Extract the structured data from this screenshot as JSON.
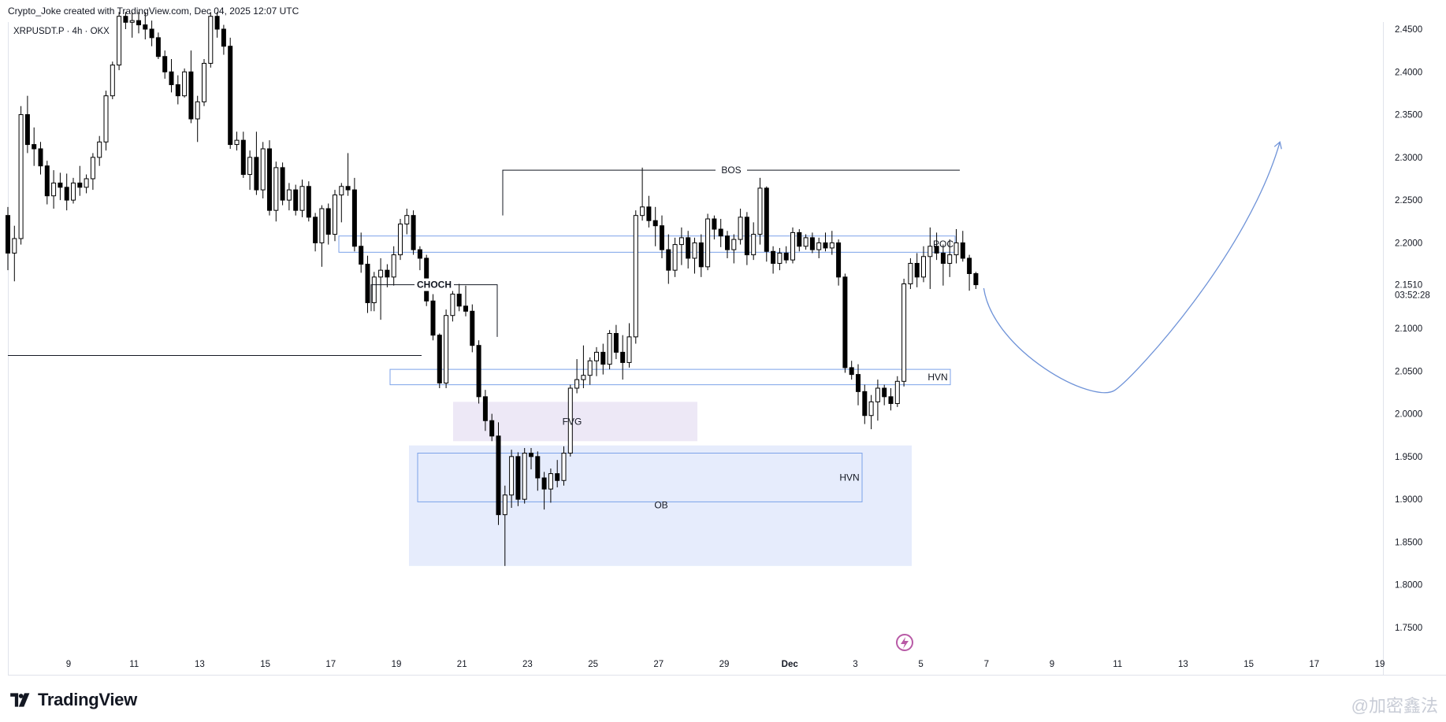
{
  "header": {
    "author_line": "Crypto_Joke created with TradingView.com, Dec 04, 2025 12:07 UTC",
    "symbol_line": "XRPUSDT.P · 4h · OKX"
  },
  "brand": {
    "name": "TradingView"
  },
  "watermark": {
    "text": "@加密鑫法"
  },
  "chart_data": {
    "type": "candlestick",
    "title": "",
    "x_ticks": [
      "9",
      "11",
      "13",
      "15",
      "17",
      "19",
      "21",
      "23",
      "25",
      "27",
      "29",
      "Dec",
      "3",
      "5",
      "7",
      "9",
      "11",
      "13",
      "15",
      "17",
      "19"
    ],
    "y_ticks": [
      "2.4500",
      "2.4000",
      "2.3500",
      "2.3000",
      "2.2500",
      "2.2000",
      "2.1510",
      "2.1000",
      "2.0500",
      "2.0000",
      "1.9500",
      "1.9000",
      "1.8500",
      "1.8000",
      "1.7500"
    ],
    "ylim": [
      1.72,
      2.47
    ],
    "last_price": "2.1510",
    "countdown": "03:52:28",
    "colors": {
      "up": "#ffffff",
      "down": "#000000",
      "wick": "#000000",
      "zone_stroke": "#7ba2e8",
      "fvg_fill": "#ede8f6",
      "ob_fill": "#e6ecfc",
      "arrow": "#6f93d8"
    },
    "annotations": [
      {
        "label": "BOS",
        "type": "level_line",
        "price": 2.285
      },
      {
        "label": "POC",
        "type": "zone",
        "price_top": 2.208,
        "price_bottom": 2.189
      },
      {
        "label": "CHOCH",
        "type": "level_line",
        "price": 2.151
      },
      {
        "label": "HVN",
        "type": "zone",
        "price_top": 2.052,
        "price_bottom": 2.034
      },
      {
        "label": "FVG",
        "type": "zone",
        "price_top": 2.014,
        "price_bottom": 1.968
      },
      {
        "label": "HVN",
        "type": "zone",
        "price_top": 1.954,
        "price_bottom": 1.897
      },
      {
        "label": "OB",
        "type": "zone",
        "price_top": 1.963,
        "price_bottom": 1.822
      }
    ],
    "projection": {
      "type": "curve_arrow",
      "points": [
        [
          0,
          2.147
        ],
        [
          8,
          2.028
        ],
        [
          18,
          2.318
        ]
      ]
    },
    "candles": [
      {
        "o": 2.232,
        "h": 2.242,
        "l": 2.168,
        "c": 2.188
      },
      {
        "o": 2.188,
        "h": 2.22,
        "l": 2.155,
        "c": 2.205
      },
      {
        "o": 2.205,
        "h": 2.36,
        "l": 2.198,
        "c": 2.35
      },
      {
        "o": 2.35,
        "h": 2.372,
        "l": 2.305,
        "c": 2.315
      },
      {
        "o": 2.315,
        "h": 2.335,
        "l": 2.29,
        "c": 2.31
      },
      {
        "o": 2.31,
        "h": 2.318,
        "l": 2.28,
        "c": 2.29
      },
      {
        "o": 2.29,
        "h": 2.296,
        "l": 2.245,
        "c": 2.255
      },
      {
        "o": 2.255,
        "h": 2.285,
        "l": 2.24,
        "c": 2.27
      },
      {
        "o": 2.27,
        "h": 2.282,
        "l": 2.25,
        "c": 2.265
      },
      {
        "o": 2.265,
        "h": 2.281,
        "l": 2.238,
        "c": 2.25
      },
      {
        "o": 2.25,
        "h": 2.276,
        "l": 2.246,
        "c": 2.27
      },
      {
        "o": 2.27,
        "h": 2.29,
        "l": 2.255,
        "c": 2.265
      },
      {
        "o": 2.265,
        "h": 2.28,
        "l": 2.258,
        "c": 2.275
      },
      {
        "o": 2.275,
        "h": 2.305,
        "l": 2.262,
        "c": 2.3
      },
      {
        "o": 2.3,
        "h": 2.325,
        "l": 2.29,
        "c": 2.318
      },
      {
        "o": 2.318,
        "h": 2.378,
        "l": 2.308,
        "c": 2.372
      },
      {
        "o": 2.372,
        "h": 2.412,
        "l": 2.368,
        "c": 2.408
      },
      {
        "o": 2.408,
        "h": 2.47,
        "l": 2.402,
        "c": 2.465
      },
      {
        "o": 2.465,
        "h": 2.47,
        "l": 2.45,
        "c": 2.458
      },
      {
        "o": 2.458,
        "h": 2.47,
        "l": 2.44,
        "c": 2.46
      },
      {
        "o": 2.46,
        "h": 2.47,
        "l": 2.445,
        "c": 2.455
      },
      {
        "o": 2.455,
        "h": 2.47,
        "l": 2.438,
        "c": 2.45
      },
      {
        "o": 2.45,
        "h": 2.46,
        "l": 2.43,
        "c": 2.44
      },
      {
        "o": 2.44,
        "h": 2.446,
        "l": 2.415,
        "c": 2.418
      },
      {
        "o": 2.418,
        "h": 2.425,
        "l": 2.392,
        "c": 2.4
      },
      {
        "o": 2.4,
        "h": 2.415,
        "l": 2.376,
        "c": 2.385
      },
      {
        "o": 2.385,
        "h": 2.396,
        "l": 2.362,
        "c": 2.372
      },
      {
        "o": 2.372,
        "h": 2.404,
        "l": 2.37,
        "c": 2.4
      },
      {
        "o": 2.4,
        "h": 2.425,
        "l": 2.34,
        "c": 2.345
      },
      {
        "o": 2.345,
        "h": 2.372,
        "l": 2.318,
        "c": 2.365
      },
      {
        "o": 2.365,
        "h": 2.415,
        "l": 2.36,
        "c": 2.41
      },
      {
        "o": 2.41,
        "h": 2.47,
        "l": 2.405,
        "c": 2.465
      },
      {
        "o": 2.465,
        "h": 2.47,
        "l": 2.44,
        "c": 2.45
      },
      {
        "o": 2.45,
        "h": 2.455,
        "l": 2.42,
        "c": 2.43
      },
      {
        "o": 2.43,
        "h": 2.44,
        "l": 2.31,
        "c": 2.315
      },
      {
        "o": 2.315,
        "h": 2.33,
        "l": 2.308,
        "c": 2.32
      },
      {
        "o": 2.32,
        "h": 2.33,
        "l": 2.276,
        "c": 2.28
      },
      {
        "o": 2.28,
        "h": 2.308,
        "l": 2.262,
        "c": 2.3
      },
      {
        "o": 2.3,
        "h": 2.33,
        "l": 2.256,
        "c": 2.262
      },
      {
        "o": 2.262,
        "h": 2.318,
        "l": 2.252,
        "c": 2.31
      },
      {
        "o": 2.31,
        "h": 2.32,
        "l": 2.232,
        "c": 2.238
      },
      {
        "o": 2.238,
        "h": 2.295,
        "l": 2.225,
        "c": 2.288
      },
      {
        "o": 2.288,
        "h": 2.294,
        "l": 2.244,
        "c": 2.25
      },
      {
        "o": 2.25,
        "h": 2.27,
        "l": 2.238,
        "c": 2.262
      },
      {
        "o": 2.262,
        "h": 2.268,
        "l": 2.232,
        "c": 2.238
      },
      {
        "o": 2.238,
        "h": 2.274,
        "l": 2.23,
        "c": 2.266
      },
      {
        "o": 2.266,
        "h": 2.272,
        "l": 2.225,
        "c": 2.23
      },
      {
        "o": 2.23,
        "h": 2.235,
        "l": 2.19,
        "c": 2.2
      },
      {
        "o": 2.2,
        "h": 2.244,
        "l": 2.172,
        "c": 2.24
      },
      {
        "o": 2.24,
        "h": 2.246,
        "l": 2.198,
        "c": 2.21
      },
      {
        "o": 2.21,
        "h": 2.262,
        "l": 2.202,
        "c": 2.256
      },
      {
        "o": 2.256,
        "h": 2.27,
        "l": 2.224,
        "c": 2.266
      },
      {
        "o": 2.266,
        "h": 2.305,
        "l": 2.255,
        "c": 2.262
      },
      {
        "o": 2.262,
        "h": 2.276,
        "l": 2.19,
        "c": 2.196
      },
      {
        "o": 2.196,
        "h": 2.212,
        "l": 2.165,
        "c": 2.175
      },
      {
        "o": 2.175,
        "h": 2.185,
        "l": 2.118,
        "c": 2.13
      },
      {
        "o": 2.13,
        "h": 2.166,
        "l": 2.12,
        "c": 2.16
      },
      {
        "o": 2.16,
        "h": 2.182,
        "l": 2.11,
        "c": 2.168
      },
      {
        "o": 2.168,
        "h": 2.175,
        "l": 2.148,
        "c": 2.16
      },
      {
        "o": 2.16,
        "h": 2.196,
        "l": 2.15,
        "c": 2.186
      },
      {
        "o": 2.186,
        "h": 2.228,
        "l": 2.18,
        "c": 2.222
      },
      {
        "o": 2.222,
        "h": 2.24,
        "l": 2.21,
        "c": 2.232
      },
      {
        "o": 2.232,
        "h": 2.238,
        "l": 2.186,
        "c": 2.192
      },
      {
        "o": 2.192,
        "h": 2.196,
        "l": 2.168,
        "c": 2.182
      },
      {
        "o": 2.182,
        "h": 2.186,
        "l": 2.126,
        "c": 2.132
      },
      {
        "o": 2.132,
        "h": 2.14,
        "l": 2.086,
        "c": 2.092
      },
      {
        "o": 2.092,
        "h": 2.094,
        "l": 2.03,
        "c": 2.036
      },
      {
        "o": 2.036,
        "h": 2.122,
        "l": 2.03,
        "c": 2.115
      },
      {
        "o": 2.115,
        "h": 2.146,
        "l": 2.108,
        "c": 2.14
      },
      {
        "o": 2.14,
        "h": 2.152,
        "l": 2.12,
        "c": 2.126
      },
      {
        "o": 2.126,
        "h": 2.15,
        "l": 2.114,
        "c": 2.12
      },
      {
        "o": 2.12,
        "h": 2.128,
        "l": 2.072,
        "c": 2.08
      },
      {
        "o": 2.08,
        "h": 2.086,
        "l": 2.012,
        "c": 2.02
      },
      {
        "o": 2.02,
        "h": 2.028,
        "l": 1.98,
        "c": 1.992
      },
      {
        "o": 1.992,
        "h": 2.0,
        "l": 1.968,
        "c": 1.974
      },
      {
        "o": 1.974,
        "h": 1.99,
        "l": 1.87,
        "c": 1.882
      },
      {
        "o": 1.882,
        "h": 1.916,
        "l": 1.822,
        "c": 1.905
      },
      {
        "o": 1.905,
        "h": 1.958,
        "l": 1.89,
        "c": 1.95
      },
      {
        "o": 1.95,
        "h": 1.955,
        "l": 1.892,
        "c": 1.9
      },
      {
        "o": 1.9,
        "h": 1.96,
        "l": 1.895,
        "c": 1.954
      },
      {
        "o": 1.954,
        "h": 1.96,
        "l": 1.935,
        "c": 1.95
      },
      {
        "o": 1.95,
        "h": 1.956,
        "l": 1.91,
        "c": 1.925
      },
      {
        "o": 1.925,
        "h": 1.932,
        "l": 1.888,
        "c": 1.912
      },
      {
        "o": 1.912,
        "h": 1.936,
        "l": 1.896,
        "c": 1.93
      },
      {
        "o": 1.93,
        "h": 1.946,
        "l": 1.914,
        "c": 1.922
      },
      {
        "o": 1.922,
        "h": 1.962,
        "l": 1.916,
        "c": 1.954
      },
      {
        "o": 1.954,
        "h": 2.034,
        "l": 1.95,
        "c": 2.03
      },
      {
        "o": 2.03,
        "h": 2.064,
        "l": 2.024,
        "c": 2.04
      },
      {
        "o": 2.04,
        "h": 2.08,
        "l": 2.03,
        "c": 2.045
      },
      {
        "o": 2.045,
        "h": 2.066,
        "l": 2.034,
        "c": 2.062
      },
      {
        "o": 2.062,
        "h": 2.078,
        "l": 2.044,
        "c": 2.072
      },
      {
        "o": 2.072,
        "h": 2.082,
        "l": 2.046,
        "c": 2.058
      },
      {
        "o": 2.058,
        "h": 2.098,
        "l": 2.052,
        "c": 2.094
      },
      {
        "o": 2.094,
        "h": 2.104,
        "l": 2.064,
        "c": 2.072
      },
      {
        "o": 2.072,
        "h": 2.092,
        "l": 2.04,
        "c": 2.06
      },
      {
        "o": 2.06,
        "h": 2.106,
        "l": 2.054,
        "c": 2.09
      },
      {
        "o": 2.09,
        "h": 2.238,
        "l": 2.082,
        "c": 2.232
      },
      {
        "o": 2.232,
        "h": 2.288,
        "l": 2.226,
        "c": 2.242
      },
      {
        "o": 2.242,
        "h": 2.255,
        "l": 2.218,
        "c": 2.226
      },
      {
        "o": 2.226,
        "h": 2.242,
        "l": 2.196,
        "c": 2.22
      },
      {
        "o": 2.22,
        "h": 2.232,
        "l": 2.182,
        "c": 2.192
      },
      {
        "o": 2.192,
        "h": 2.21,
        "l": 2.152,
        "c": 2.168
      },
      {
        "o": 2.168,
        "h": 2.206,
        "l": 2.16,
        "c": 2.198
      },
      {
        "o": 2.198,
        "h": 2.218,
        "l": 2.174,
        "c": 2.206
      },
      {
        "o": 2.206,
        "h": 2.214,
        "l": 2.17,
        "c": 2.182
      },
      {
        "o": 2.182,
        "h": 2.206,
        "l": 2.164,
        "c": 2.2
      },
      {
        "o": 2.2,
        "h": 2.21,
        "l": 2.16,
        "c": 2.172
      },
      {
        "o": 2.172,
        "h": 2.234,
        "l": 2.168,
        "c": 2.228
      },
      {
        "o": 2.228,
        "h": 2.232,
        "l": 2.204,
        "c": 2.216
      },
      {
        "o": 2.216,
        "h": 2.228,
        "l": 2.195,
        "c": 2.208
      },
      {
        "o": 2.208,
        "h": 2.214,
        "l": 2.182,
        "c": 2.192
      },
      {
        "o": 2.192,
        "h": 2.21,
        "l": 2.176,
        "c": 2.204
      },
      {
        "o": 2.204,
        "h": 2.24,
        "l": 2.198,
        "c": 2.23
      },
      {
        "o": 2.23,
        "h": 2.236,
        "l": 2.174,
        "c": 2.186
      },
      {
        "o": 2.186,
        "h": 2.224,
        "l": 2.18,
        "c": 2.21
      },
      {
        "o": 2.21,
        "h": 2.276,
        "l": 2.198,
        "c": 2.264
      },
      {
        "o": 2.264,
        "h": 2.266,
        "l": 2.178,
        "c": 2.19
      },
      {
        "o": 2.19,
        "h": 2.196,
        "l": 2.164,
        "c": 2.176
      },
      {
        "o": 2.176,
        "h": 2.194,
        "l": 2.168,
        "c": 2.188
      },
      {
        "o": 2.188,
        "h": 2.196,
        "l": 2.176,
        "c": 2.18
      },
      {
        "o": 2.18,
        "h": 2.218,
        "l": 2.176,
        "c": 2.212
      },
      {
        "o": 2.212,
        "h": 2.216,
        "l": 2.19,
        "c": 2.196
      },
      {
        "o": 2.196,
        "h": 2.21,
        "l": 2.192,
        "c": 2.206
      },
      {
        "o": 2.206,
        "h": 2.212,
        "l": 2.188,
        "c": 2.192
      },
      {
        "o": 2.192,
        "h": 2.206,
        "l": 2.182,
        "c": 2.2
      },
      {
        "o": 2.2,
        "h": 2.212,
        "l": 2.19,
        "c": 2.194
      },
      {
        "o": 2.194,
        "h": 2.214,
        "l": 2.186,
        "c": 2.2
      },
      {
        "o": 2.2,
        "h": 2.204,
        "l": 2.15,
        "c": 2.16
      },
      {
        "o": 2.16,
        "h": 2.164,
        "l": 2.048,
        "c": 2.054
      },
      {
        "o": 2.054,
        "h": 2.062,
        "l": 2.04,
        "c": 2.046
      },
      {
        "o": 2.046,
        "h": 2.058,
        "l": 2.01,
        "c": 2.026
      },
      {
        "o": 2.026,
        "h": 2.034,
        "l": 1.988,
        "c": 1.998
      },
      {
        "o": 1.998,
        "h": 2.022,
        "l": 1.982,
        "c": 2.014
      },
      {
        "o": 2.014,
        "h": 2.04,
        "l": 1.992,
        "c": 2.03
      },
      {
        "o": 2.03,
        "h": 2.034,
        "l": 2.01,
        "c": 2.02
      },
      {
        "o": 2.02,
        "h": 2.03,
        "l": 2.004,
        "c": 2.012
      },
      {
        "o": 2.012,
        "h": 2.044,
        "l": 2.008,
        "c": 2.038
      },
      {
        "o": 2.038,
        "h": 2.158,
        "l": 2.032,
        "c": 2.152
      },
      {
        "o": 2.152,
        "h": 2.182,
        "l": 2.146,
        "c": 2.176
      },
      {
        "o": 2.176,
        "h": 2.188,
        "l": 2.148,
        "c": 2.16
      },
      {
        "o": 2.16,
        "h": 2.196,
        "l": 2.154,
        "c": 2.184
      },
      {
        "o": 2.184,
        "h": 2.218,
        "l": 2.146,
        "c": 2.196
      },
      {
        "o": 2.196,
        "h": 2.212,
        "l": 2.18,
        "c": 2.188
      },
      {
        "o": 2.188,
        "h": 2.198,
        "l": 2.15,
        "c": 2.176
      },
      {
        "o": 2.176,
        "h": 2.204,
        "l": 2.16,
        "c": 2.186
      },
      {
        "o": 2.186,
        "h": 2.216,
        "l": 2.176,
        "c": 2.2
      },
      {
        "o": 2.2,
        "h": 2.214,
        "l": 2.178,
        "c": 2.182
      },
      {
        "o": 2.182,
        "h": 2.186,
        "l": 2.144,
        "c": 2.164
      },
      {
        "o": 2.164,
        "h": 2.166,
        "l": 2.146,
        "c": 2.151
      }
    ]
  }
}
